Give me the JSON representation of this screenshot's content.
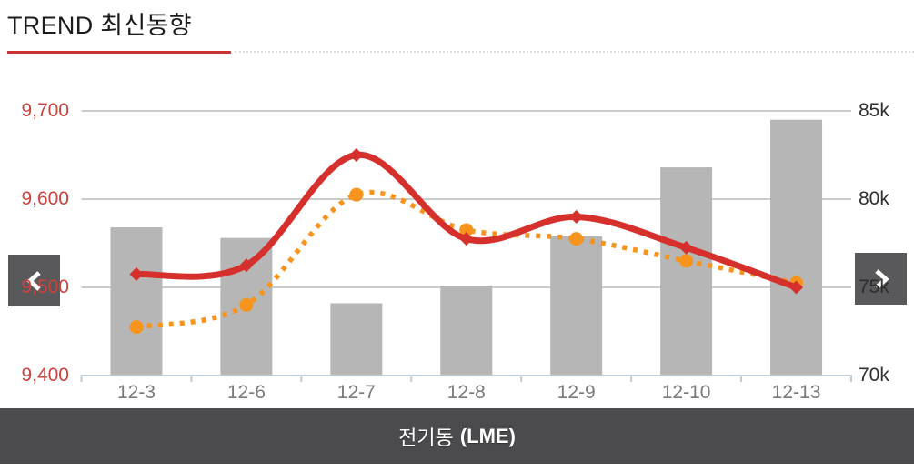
{
  "header": {
    "title": "TREND 최신동향"
  },
  "nav": {
    "prev_icon": "chevron-left",
    "next_icon": "chevron-right"
  },
  "footer": {
    "label_ko": "전기동",
    "label_en": "(LME)"
  },
  "theme": {
    "accent_red": "#cc3434",
    "line_red": "#d6302c",
    "line_orange": "#f7941d",
    "bar_gray": "#b6b6b6",
    "axis_line": "#bfccd6",
    "gridline": "#cbcbcb",
    "left_label_color": "#cb423e",
    "right_label_color": "#2e2e2e",
    "x_label_color": "#7a7a7a",
    "button_bg": "#59595b",
    "footer_bg": "#4b4b4d"
  },
  "chart_data": {
    "type": "bar",
    "subtype": "combo bar + 2 smoothed lines, dual axis",
    "title": "",
    "legend": false,
    "grid": true,
    "categories": [
      "12-3",
      "12-6",
      "12-7",
      "12-8",
      "12-9",
      "12-10",
      "12-13"
    ],
    "series": [
      {
        "name": "line-red",
        "type": "line",
        "axis": "left",
        "dash": "solid",
        "marker": "diamond",
        "values": [
          9515,
          9525,
          9650,
          9555,
          9580,
          9545,
          9500
        ]
      },
      {
        "name": "line-orange",
        "type": "line",
        "axis": "left",
        "dash": "dotted",
        "marker": "circle",
        "values": [
          9455,
          9480,
          9605,
          9565,
          9555,
          9530,
          9505
        ]
      },
      {
        "name": "bars",
        "type": "bar",
        "axis": "right",
        "values": [
          78.4,
          77.8,
          74.1,
          75.1,
          77.9,
          81.8,
          84.5
        ]
      }
    ],
    "left_axis": {
      "min": 9400,
      "max": 9700,
      "tick_values": [
        9700,
        9600,
        9500,
        9400
      ],
      "tick_labels": [
        "9,700",
        "9,600",
        "9,500",
        "9,400"
      ]
    },
    "right_axis": {
      "min": 70,
      "max": 85,
      "unit": "k",
      "tick_values": [
        85,
        80,
        75,
        70
      ],
      "tick_labels": [
        "85k",
        "80k",
        "75k",
        "70k"
      ]
    }
  }
}
